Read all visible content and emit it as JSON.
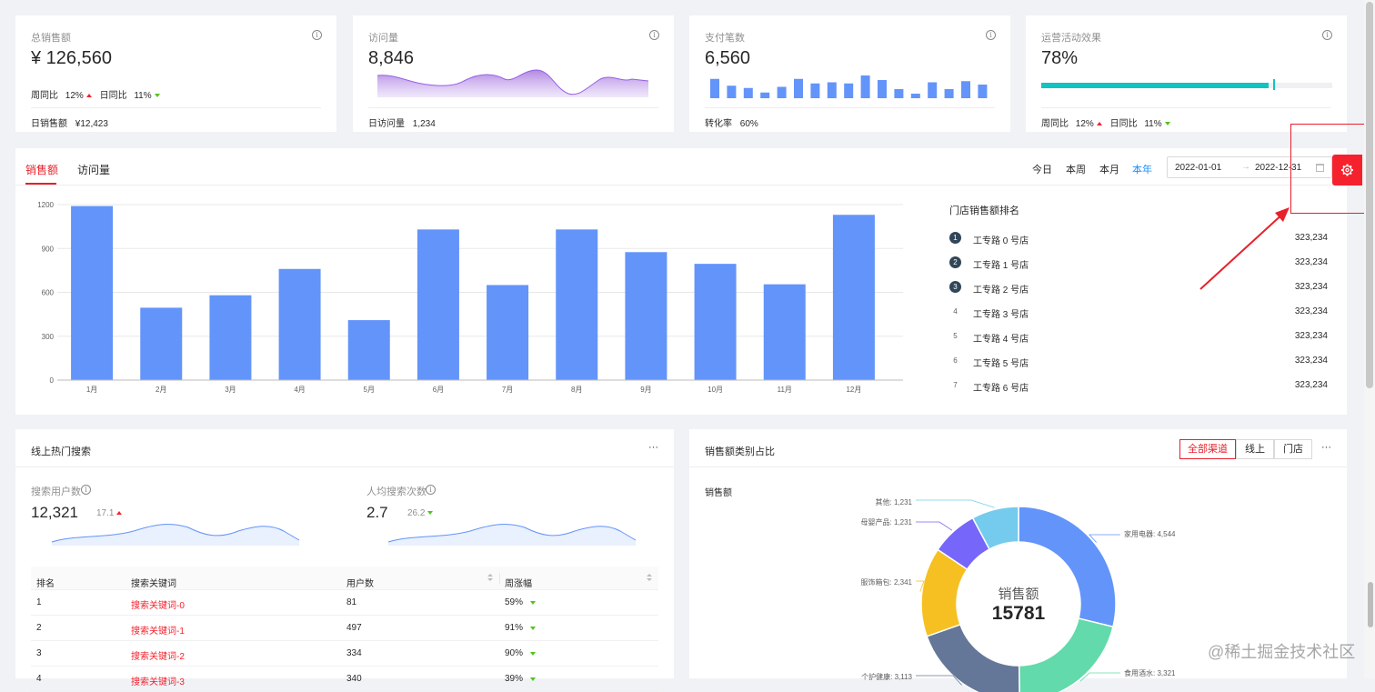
{
  "stats": [
    {
      "title": "总销售额",
      "value": "¥ 126,560",
      "footer_label": "日销售额",
      "footer_value": "¥12,423",
      "week_label": "周同比",
      "week_value": "12%",
      "day_label": "日同比",
      "day_value": "11%"
    },
    {
      "title": "访问量",
      "value": "8,846",
      "footer_label": "日访问量",
      "footer_value": "1,234"
    },
    {
      "title": "支付笔数",
      "value": "6,560",
      "footer_label": "转化率",
      "footer_value": "60%",
      "bars": [
        0.85,
        0.55,
        0.45,
        0.25,
        0.5,
        0.85,
        0.65,
        0.7,
        0.65,
        1.0,
        0.8,
        0.4,
        0.2,
        0.7,
        0.4,
        0.75,
        0.6
      ]
    },
    {
      "title": "运营活动效果",
      "value": "78%",
      "progress": 0.78,
      "week_label": "周同比",
      "week_value": "12%",
      "day_label": "日同比",
      "day_value": "11%"
    }
  ],
  "sales_panel": {
    "tabs": [
      "销售额",
      "访问量"
    ],
    "ranges": [
      "今日",
      "本周",
      "本月",
      "本年"
    ],
    "active_range": "本年",
    "date_start": "2022-01-01",
    "date_sep": "→",
    "date_end": "2022-12-31",
    "ranking_title": "门店销售额排名",
    "ranking": [
      {
        "rank": "1",
        "name": "工专路 0 号店",
        "value": "323,234"
      },
      {
        "rank": "2",
        "name": "工专路 1 号店",
        "value": "323,234"
      },
      {
        "rank": "3",
        "name": "工专路 2 号店",
        "value": "323,234"
      },
      {
        "rank": "4",
        "name": "工专路 3 号店",
        "value": "323,234"
      },
      {
        "rank": "5",
        "name": "工专路 4 号店",
        "value": "323,234"
      },
      {
        "rank": "6",
        "name": "工专路 5 号店",
        "value": "323,234"
      },
      {
        "rank": "7",
        "name": "工专路 6 号店",
        "value": "323,234"
      }
    ]
  },
  "chart_data": [
    {
      "type": "bar",
      "categories": [
        "1月",
        "2月",
        "3月",
        "4月",
        "5月",
        "6月",
        "7月",
        "8月",
        "9月",
        "10月",
        "11月",
        "12月"
      ],
      "values": [
        1190,
        495,
        580,
        760,
        410,
        1030,
        650,
        1030,
        875,
        795,
        655,
        1130
      ],
      "ylim": [
        0,
        1200
      ],
      "yticks": [
        "0",
        "300",
        "600",
        "900",
        "1200"
      ],
      "grid": true,
      "color": "#6394f9"
    },
    {
      "type": "pie",
      "title": "销售额",
      "center_label": "销售额",
      "center_value": "15781",
      "slices": [
        {
          "label": "家用电器: 4,544",
          "value": 4544,
          "color": "#6394f9"
        },
        {
          "label": "食用酒水: 3,321",
          "value": 3321,
          "color": "#62daab"
        },
        {
          "label": "个护健康: 3,113",
          "value": 3113,
          "color": "#657798"
        },
        {
          "label": "服饰箱包: 2,341",
          "value": 2341,
          "color": "#f6c022"
        },
        {
          "label": "母婴产品: 1,231",
          "value": 1231,
          "color": "#7666f9"
        },
        {
          "label": "其他: 1,231",
          "value": 1231,
          "color": "#74cbed"
        }
      ]
    }
  ],
  "search_panel": {
    "title": "线上热门搜索",
    "more": "···",
    "users_label": "搜索用户数",
    "users_value": "12,321",
    "users_change": "17.1",
    "avg_label": "人均搜索次数",
    "avg_value": "2.7",
    "avg_change": "26.2",
    "columns": [
      "排名",
      "搜索关键词",
      "用户数",
      "周涨幅"
    ],
    "rows": [
      {
        "rank": "1",
        "keyword": "搜索关键词-0",
        "users": "81",
        "change": "59%"
      },
      {
        "rank": "2",
        "keyword": "搜索关键词-1",
        "users": "497",
        "change": "91%"
      },
      {
        "rank": "3",
        "keyword": "搜索关键词-2",
        "users": "334",
        "change": "90%"
      },
      {
        "rank": "4",
        "keyword": "搜索关键词-3",
        "users": "340",
        "change": "39%"
      }
    ]
  },
  "category_panel": {
    "title": "销售额类别占比",
    "channels": [
      "全部渠道",
      "线上",
      "门店"
    ],
    "more": "···"
  },
  "watermark": "@稀土掘金技术社区",
  "colors": {
    "accent": "#1890ff",
    "red": "#f5222d",
    "highlight": "#e8202a",
    "progress": "#13c2c2"
  }
}
